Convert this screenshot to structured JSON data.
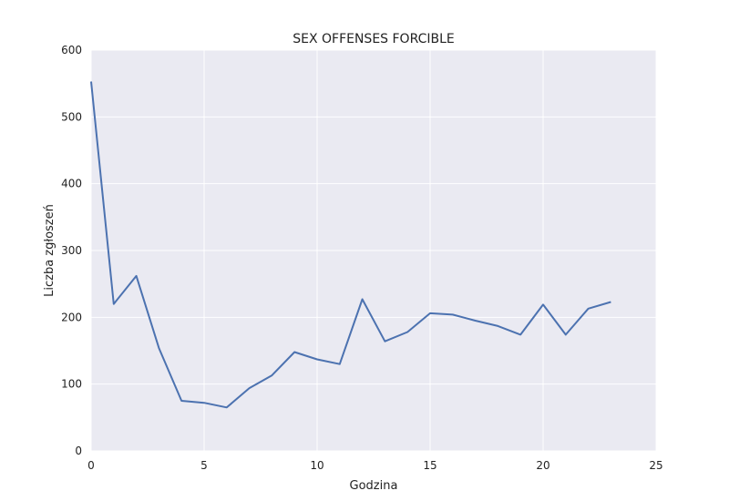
{
  "chart_data": {
    "type": "line",
    "title": "SEX OFFENSES FORCIBLE",
    "xlabel": "Godzina",
    "ylabel": "Liczba zgłoszeń",
    "xlim": [
      0,
      25
    ],
    "ylim": [
      0,
      600
    ],
    "xticks": [
      0,
      5,
      10,
      15,
      20,
      25
    ],
    "yticks": [
      0,
      100,
      200,
      300,
      400,
      500,
      600
    ],
    "grid": true,
    "colors": {
      "plot_bg": "#eaeaf2",
      "grid": "#ffffff",
      "line": "#4c72b0"
    },
    "series": [
      {
        "x": [
          0,
          1,
          2,
          3,
          4,
          5,
          6,
          7,
          8,
          9,
          10,
          11,
          12,
          13,
          14,
          15,
          16,
          17,
          18,
          19,
          20,
          21,
          22,
          23
        ],
        "values": [
          553,
          220,
          262,
          154,
          75,
          72,
          65,
          94,
          113,
          148,
          137,
          130,
          227,
          164,
          178,
          206,
          204,
          195,
          187,
          174,
          219,
          174,
          213,
          223
        ]
      }
    ]
  }
}
